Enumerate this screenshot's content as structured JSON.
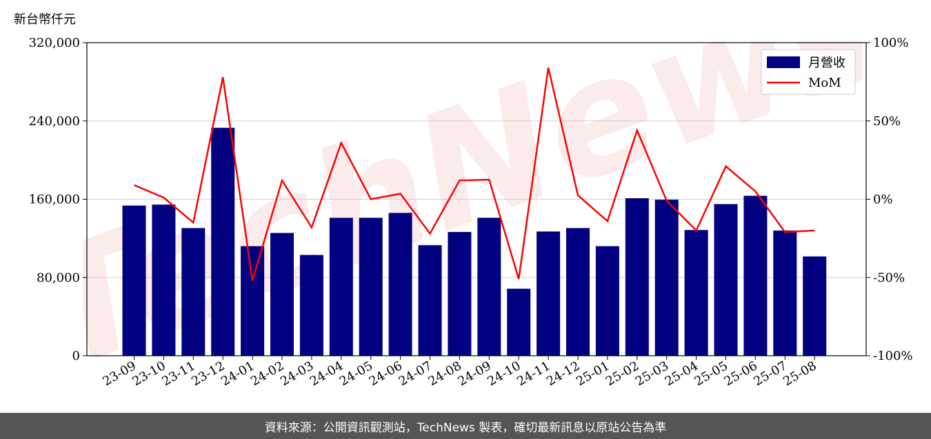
{
  "chart_data": {
    "type": "bar",
    "y_unit_label": "新台幣仟元",
    "categories": [
      "23-09",
      "23-10",
      "23-11",
      "23-12",
      "24-01",
      "24-02",
      "24-03",
      "24-04",
      "24-05",
      "24-06",
      "24-07",
      "24-08",
      "24-09",
      "24-10",
      "24-11",
      "24-12",
      "25-01",
      "25-02",
      "25-03",
      "25-04",
      "25-05",
      "25-06",
      "25-07",
      "25-08"
    ],
    "series": [
      {
        "name": "月營收",
        "kind": "bar",
        "axis": "left",
        "color": "#000080",
        "values": [
          153500,
          154500,
          130500,
          233000,
          112000,
          125500,
          103000,
          141000,
          141000,
          146000,
          113000,
          126500,
          141000,
          68500,
          127000,
          130500,
          112000,
          161000,
          159500,
          128500,
          155000,
          163500,
          128000,
          101500
        ]
      },
      {
        "name": "MoM",
        "kind": "line",
        "axis": "right",
        "color": "#ff0000",
        "unit": "%",
        "values": [
          9,
          1,
          -15,
          78,
          -52,
          12,
          -18,
          36,
          0,
          3.5,
          -22,
          12,
          12.5,
          -51,
          84,
          2.5,
          -14,
          44,
          -1,
          -20,
          21,
          5,
          -21,
          -20
        ]
      }
    ],
    "ylim_left": [
      0,
      320000
    ],
    "yticks_left": [
      "0",
      "80,000",
      "160,000",
      "240,000",
      "320,000"
    ],
    "ylim_right": [
      -100,
      100
    ],
    "yticks_right": [
      "-100%",
      "-50%",
      "0%",
      "50%",
      "100%"
    ],
    "grid": "horizontal",
    "legend_position": "top-right"
  },
  "watermark": "TechNews",
  "footer": "資料來源：公開資訊觀測站，TechNews 製表，確切最新訊息以原站公告為準"
}
